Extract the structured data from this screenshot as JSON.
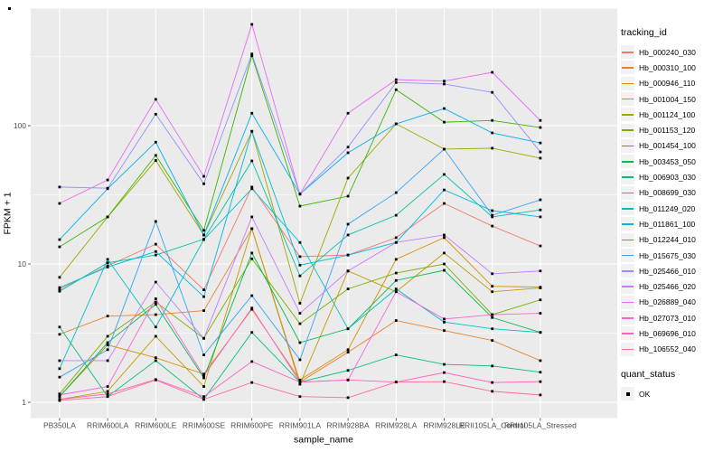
{
  "chart_data": {
    "type": "line",
    "title": "",
    "xlabel": "sample_name",
    "ylabel": "FPKM + 1",
    "y_scale": "log10",
    "y_ticks": [
      "1",
      "10",
      "100"
    ],
    "y_tick_values": [
      1,
      10,
      100
    ],
    "ylim": [
      0.77,
      700
    ],
    "grid": true,
    "legend_position": "right",
    "panel_bg": "#EBEBEB",
    "grid_color": "#FFFFFF",
    "point_color": "#000000",
    "point_shape": "filled-square",
    "legend_title": "tracking_id",
    "quant_legend": {
      "title": "quant_status",
      "items": [
        "OK"
      ]
    },
    "categories": [
      "PB350LA",
      "RRIM600LA",
      "RRIM600LE",
      "RRIM600SE",
      "RRIM600PE",
      "RRIM901LA",
      "RRIM928BA",
      "RRIM928LA",
      "RRIM928LE",
      "RRII105LA_Control",
      "RRII105LA_Stressed"
    ],
    "series": [
      {
        "name": "Hb_000240_030",
        "color": "#F8766D",
        "values": [
          6.6,
          9.7,
          13.9,
          6.5,
          36,
          11.3,
          11.6,
          15.5,
          27.4,
          18.8,
          13.5
        ]
      },
      {
        "name": "Hb_000310_100",
        "color": "#EA8331",
        "values": [
          3.1,
          4.2,
          4.3,
          4.6,
          18,
          1.4,
          2.3,
          3.9,
          3.3,
          2.8,
          2.0
        ]
      },
      {
        "name": "Hb_000946_110",
        "color": "#D89000",
        "values": [
          1.1,
          2.6,
          2.1,
          1.6,
          4.7,
          1.45,
          2.4,
          10.8,
          15.5,
          6.9,
          6.8
        ]
      },
      {
        "name": "Hb_001004_150",
        "color": "#C09B00",
        "values": [
          1.05,
          1.2,
          3.0,
          1.3,
          18,
          1.35,
          8.9,
          6.3,
          12,
          6.3,
          6.7
        ]
      },
      {
        "name": "Hb_001124_100",
        "color": "#A3A500",
        "values": [
          8.0,
          21.9,
          56,
          16.2,
          91,
          5.2,
          41.8,
          103,
          67.7,
          68.7,
          58.2
        ]
      },
      {
        "name": "Hb_001153_120",
        "color": "#7CAE00",
        "values": [
          1.15,
          3.0,
          5.3,
          2.9,
          10.9,
          3.7,
          6.6,
          8.6,
          10,
          4.3,
          5.5
        ]
      },
      {
        "name": "Hb_001454_100",
        "color": "#39B600",
        "values": [
          13.3,
          21.9,
          61,
          17.5,
          320,
          26.2,
          30.9,
          182,
          106,
          109,
          97
        ]
      },
      {
        "name": "Hb_003453_050",
        "color": "#00BB4E",
        "values": [
          1.1,
          2.7,
          5.1,
          1.5,
          12,
          2.7,
          3.4,
          7.6,
          9.0,
          4.1,
          3.2
        ]
      },
      {
        "name": "Hb_006903_030",
        "color": "#00BF7D",
        "values": [
          3.5,
          1.1,
          2.0,
          1.05,
          3.2,
          1.4,
          1.7,
          2.2,
          1.88,
          1.83,
          1.65
        ]
      },
      {
        "name": "Hb_008699_030",
        "color": "#00C1A3",
        "values": [
          6.35,
          10.2,
          11.6,
          15.1,
          55.6,
          8.2,
          16.2,
          22.5,
          44.4,
          21.9,
          24.6
        ]
      },
      {
        "name": "Hb_011249_020",
        "color": "#00BFC4",
        "values": [
          1.75,
          10.8,
          3.5,
          15.0,
          35,
          14.3,
          3.4,
          6.6,
          3.8,
          3.4,
          3.2
        ]
      },
      {
        "name": "Hb_011861_100",
        "color": "#00BAE0",
        "values": [
          6.75,
          9.5,
          12.3,
          5.8,
          91,
          9.8,
          11.6,
          14.3,
          34.3,
          24.3,
          21.9
        ]
      },
      {
        "name": "Hb_012244_010",
        "color": "#00B0F6",
        "values": [
          15,
          35,
          76,
          16.2,
          123,
          32,
          63.7,
          103,
          133,
          88.6,
          75
        ]
      },
      {
        "name": "Hb_015675_030",
        "color": "#35A2FF",
        "values": [
          1.52,
          2.4,
          20.3,
          2.2,
          5.9,
          2.03,
          19.4,
          32.8,
          67.7,
          22.5,
          29.1
        ]
      },
      {
        "name": "Hb_025466_010",
        "color": "#9590FF",
        "values": [
          36,
          35.3,
          121,
          38,
          330,
          32,
          70,
          205,
          200,
          174,
          64.6
        ]
      },
      {
        "name": "Hb_025466_020",
        "color": "#C77CFF",
        "values": [
          2.0,
          2.0,
          7.4,
          2.9,
          21.9,
          4.4,
          8.9,
          14.3,
          16.2,
          8.5,
          8.9
        ]
      },
      {
        "name": "Hb_026889_040",
        "color": "#E76BF3",
        "values": [
          27.4,
          40.5,
          155,
          43,
          540,
          32,
          123,
          215,
          210,
          243,
          109
        ]
      },
      {
        "name": "Hb_027073_010",
        "color": "#FA62DB",
        "values": [
          1.13,
          1.3,
          5.6,
          1.55,
          4.8,
          1.4,
          1.45,
          6.3,
          4.0,
          4.3,
          4.4
        ]
      },
      {
        "name": "Hb_069696_010",
        "color": "#FF62BC",
        "values": [
          1.05,
          1.15,
          1.46,
          1.1,
          1.97,
          1.4,
          1.45,
          1.4,
          1.64,
          1.39,
          1.41
        ]
      },
      {
        "name": "Hb_106552_040",
        "color": "#FF6A98",
        "values": [
          1.03,
          1.1,
          1.45,
          1.05,
          1.39,
          1.1,
          1.08,
          1.4,
          1.41,
          1.2,
          1.13
        ]
      }
    ]
  }
}
